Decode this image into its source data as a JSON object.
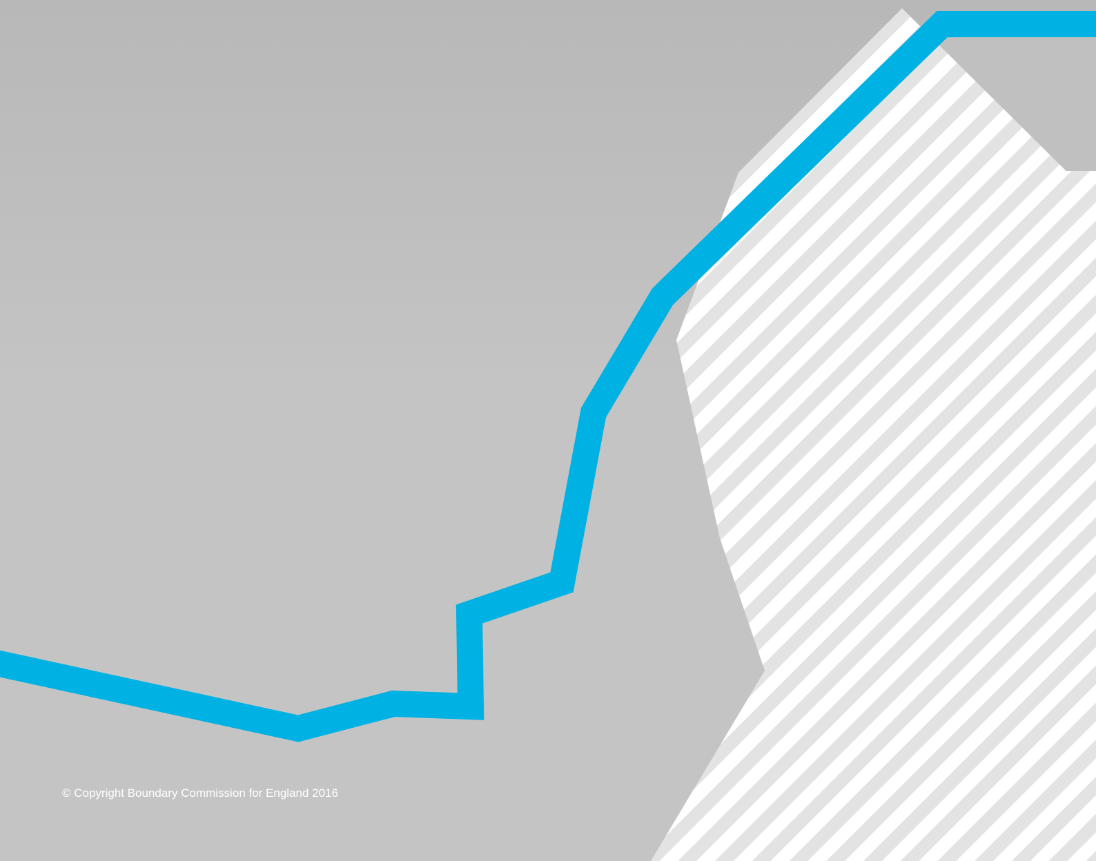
{
  "footer": {
    "copyright": "© Copyright Boundary Commission for England 2016"
  },
  "colors": {
    "background": "#c4c4c4",
    "boundary_line": "#00b2e3",
    "hatch_light": "#e3e3e3",
    "hatch_stripe": "#ffffff"
  }
}
